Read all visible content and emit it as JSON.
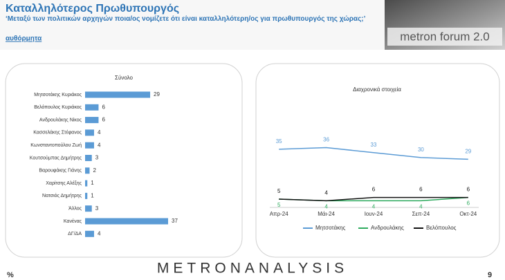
{
  "header": {
    "title": "Καταλληλότερος Πρωθυπουργός",
    "subtitle": "‘Μεταξύ των πολιτικών αρχηγών ποια/ος νομίζετε ότι είναι καταλληλότερη/ος για πρωθυπουργός της χώρας;’",
    "note": "αυθόρμητα"
  },
  "logo": "metron forum 2.0",
  "footer": {
    "brand": "METRONANALYSIS",
    "unit": "%",
    "page": "9"
  },
  "chart_data": [
    {
      "type": "hbar",
      "title": "Σύνολο",
      "color": "#5b9bd5",
      "categories": [
        "Μητσοτάκης Κυριάκος",
        "Βελόπουλος Κυριάκος",
        "Ανδρουλάκης Νίκος",
        "Κασσελάκης Στέφανος",
        "Κωνσταντοπούλου Ζωή",
        "Κουτσούμπας Δημήτρης",
        "Βαρουφάκης Γιάνης",
        "Χαρίτσης Αλέξης",
        "Νατσιός Δημήτρης",
        "Άλλος",
        "Κανένας",
        "ΔΓ/ΔΑ"
      ],
      "values": [
        29,
        6,
        6,
        4,
        4,
        3,
        2,
        1,
        1,
        3,
        37,
        4
      ]
    },
    {
      "type": "line",
      "title": "Διαχρονικά στοιχεία",
      "categories": [
        "Απρ-24",
        "Μάι-24",
        "Ιουν-24",
        "Σεπ-24",
        "Οκτ-24"
      ],
      "series": [
        {
          "name": "Μητσοτάκης",
          "color": "#5b9bd5",
          "values": [
            35,
            36,
            33,
            30,
            29
          ]
        },
        {
          "name": "Ανδρουλάκης",
          "color": "#2eaa5e",
          "values": [
            5,
            4,
            4,
            4,
            6
          ]
        },
        {
          "name": "Βελόπουλος",
          "color": "#111111",
          "values": [
            5,
            4,
            6,
            6,
            6
          ]
        }
      ]
    }
  ]
}
